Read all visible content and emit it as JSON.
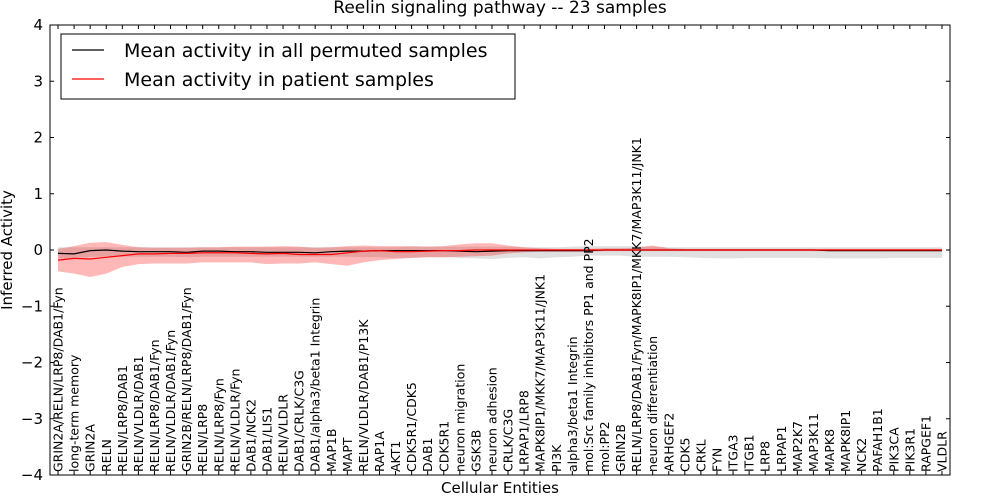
{
  "chart_data": {
    "type": "line",
    "title": "Reelin signaling pathway -- 23 samples",
    "xlabel": "Cellular Entities",
    "ylabel": "Inferred Activity",
    "ylim": [
      -4,
      4
    ],
    "yticks": [
      "4",
      "3",
      "2",
      "1",
      "0",
      "−1",
      "−2",
      "−3",
      "−4"
    ],
    "yticks_values": [
      4,
      3,
      2,
      1,
      0,
      -1,
      -2,
      -3,
      -4
    ],
    "legend_position": "top-left",
    "grid": false,
    "categories": [
      "GRIN2A/RELN/LRP8/DAB1/Fyn",
      "long-term memory",
      "GRIN2A",
      "RELN",
      "RELN/LRP8/DAB1",
      "RELN/VLDLR/DAB1",
      "RELN/LRP8/DAB1/Fyn",
      "RELN/VLDLR/DAB1/Fyn",
      "GRIN2B/RELN/LRP8/DAB1/Fyn",
      "RELN/LRP8",
      "RELN/LRP8/Fyn",
      "RELN/VLDLR/Fyn",
      "DAB1/NCK2",
      "DAB1/LIS1",
      "RELN/VLDLR",
      "DAB1/CRLK/C3G",
      "DAB1/alpha3/beta1 Integrin",
      "MAP1B",
      "MAPT",
      "RELN/VLDLR/DAB1/P13K",
      "RAP1A",
      "AKT1",
      "CDK5R1/CDK5",
      "DAB1",
      "CDK5R1",
      "neuron migration",
      "GSK3B",
      "neuron adhesion",
      "CRLK/C3G",
      "LRPAP1/LRP8",
      "MAPK8IP1/MKK7/MAP3K11/JNK1",
      "PI3K",
      "alpha3/beta1 Integrin",
      "mol:Src family inhibitors PP1 and PP2",
      "mol:PP2",
      "GRIN2B",
      "RELN/LRP8/DAB1/Fyn/MAPK8IP1/MKK7/MAP3K11/JNK1",
      "neuron differentiation",
      "ARHGEF2",
      "CDK5",
      "CRKL",
      "FYN",
      "ITGA3",
      "ITGB1",
      "LRP8",
      "LRPAP1",
      "MAP2K7",
      "MAP3K11",
      "MAPK8",
      "MAPK8IP1",
      "NCK2",
      "PAFAH1B1",
      "PIK3CA",
      "PIK3R1",
      "RAPGEF1",
      "VLDLR"
    ],
    "series": [
      {
        "name": "Mean activity in all permuted samples",
        "color": "#000000",
        "values": [
          -0.06,
          -0.07,
          -0.01,
          0.0,
          -0.02,
          -0.03,
          -0.03,
          -0.03,
          -0.04,
          -0.02,
          -0.02,
          -0.03,
          -0.03,
          -0.04,
          -0.04,
          -0.04,
          -0.05,
          -0.03,
          -0.02,
          -0.02,
          -0.01,
          -0.01,
          -0.01,
          -0.01,
          -0.01,
          -0.02,
          -0.03,
          -0.02,
          -0.01,
          -0.01,
          -0.01,
          -0.01,
          -0.01,
          -0.01,
          0.0,
          0.0,
          0.0,
          0.0,
          0.0,
          0.0,
          0.0,
          0.0,
          0.0,
          0.0,
          0.0,
          0.0,
          0.0,
          0.0,
          -0.01,
          -0.01,
          -0.01,
          -0.01,
          -0.01,
          -0.01,
          -0.01,
          -0.01
        ],
        "band_lower": [
          -0.15,
          -0.15,
          -0.12,
          -0.12,
          -0.12,
          -0.12,
          -0.12,
          -0.12,
          -0.13,
          -0.12,
          -0.12,
          -0.12,
          -0.12,
          -0.12,
          -0.12,
          -0.12,
          -0.12,
          -0.12,
          -0.12,
          -0.13,
          -0.13,
          -0.14,
          -0.14,
          -0.13,
          -0.13,
          -0.14,
          -0.15,
          -0.16,
          -0.14,
          -0.13,
          -0.15,
          -0.13,
          -0.12,
          -0.1,
          -0.1,
          -0.1,
          -0.12,
          -0.12,
          -0.12,
          -0.13,
          -0.14,
          -0.15,
          -0.15,
          -0.14,
          -0.14,
          -0.14,
          -0.14,
          -0.14,
          -0.15,
          -0.15,
          -0.15,
          -0.15,
          -0.14,
          -0.14,
          -0.14,
          -0.14
        ],
        "band_upper": [
          0.05,
          0.05,
          0.05,
          0.05,
          0.05,
          0.05,
          0.05,
          0.05,
          0.05,
          0.05,
          0.05,
          0.05,
          0.05,
          0.05,
          0.05,
          0.05,
          0.05,
          0.05,
          0.05,
          0.05,
          0.05,
          0.05,
          0.06,
          0.06,
          0.06,
          0.06,
          0.06,
          0.06,
          0.06,
          0.05,
          0.05,
          0.05,
          0.06,
          0.07,
          0.07,
          0.07,
          0.07,
          0.06,
          0.05,
          0.05,
          0.05,
          0.05,
          0.05,
          0.05,
          0.05,
          0.05,
          0.05,
          0.05,
          0.05,
          0.05,
          0.05,
          0.05,
          0.05,
          0.05,
          0.05,
          0.05
        ]
      },
      {
        "name": "Mean activity in patient samples",
        "color": "#ff0000",
        "values": [
          -0.18,
          -0.15,
          -0.16,
          -0.13,
          -0.1,
          -0.07,
          -0.07,
          -0.06,
          -0.06,
          -0.05,
          -0.05,
          -0.05,
          -0.06,
          -0.07,
          -0.06,
          -0.08,
          -0.08,
          -0.08,
          -0.05,
          -0.02,
          -0.01,
          -0.03,
          -0.03,
          -0.02,
          -0.01,
          -0.01,
          0.0,
          0.0,
          0.0,
          0.0,
          0.0,
          0.0,
          0.0,
          0.0,
          0.0,
          0.0,
          0.0,
          0.0,
          0.0,
          0.0,
          0.0,
          0.0,
          0.0,
          0.0,
          0.0,
          0.0,
          0.0,
          0.0,
          0.0,
          0.0,
          0.0,
          0.0,
          0.0,
          0.0,
          0.0,
          0.0
        ],
        "band_lower": [
          -0.38,
          -0.42,
          -0.48,
          -0.42,
          -0.3,
          -0.25,
          -0.24,
          -0.24,
          -0.24,
          -0.22,
          -0.22,
          -0.22,
          -0.22,
          -0.25,
          -0.24,
          -0.24,
          -0.22,
          -0.25,
          -0.28,
          -0.22,
          -0.18,
          -0.16,
          -0.14,
          -0.13,
          -0.13,
          -0.12,
          -0.11,
          -0.1,
          -0.06,
          -0.04,
          -0.03,
          -0.03,
          -0.03,
          -0.03,
          -0.02,
          -0.02,
          -0.02,
          -0.02,
          -0.02,
          -0.02,
          -0.02,
          -0.02,
          -0.02,
          -0.02,
          -0.02,
          -0.02,
          -0.02,
          -0.02,
          -0.02,
          -0.02,
          -0.02,
          -0.02,
          -0.02,
          -0.02,
          -0.02,
          -0.02
        ],
        "band_upper": [
          0.02,
          0.07,
          0.13,
          0.14,
          0.09,
          0.05,
          0.04,
          0.04,
          0.04,
          0.05,
          0.05,
          0.06,
          0.06,
          0.06,
          0.07,
          0.06,
          0.04,
          0.05,
          0.07,
          0.08,
          0.07,
          0.07,
          0.07,
          0.06,
          0.07,
          0.1,
          0.12,
          0.12,
          0.08,
          0.05,
          0.03,
          0.02,
          0.02,
          0.02,
          0.03,
          0.03,
          0.04,
          0.08,
          0.03,
          0.02,
          0.02,
          0.02,
          0.02,
          0.02,
          0.02,
          0.02,
          0.02,
          0.02,
          0.02,
          0.02,
          0.02,
          0.02,
          0.02,
          0.02,
          0.02,
          0.02
        ]
      }
    ]
  }
}
